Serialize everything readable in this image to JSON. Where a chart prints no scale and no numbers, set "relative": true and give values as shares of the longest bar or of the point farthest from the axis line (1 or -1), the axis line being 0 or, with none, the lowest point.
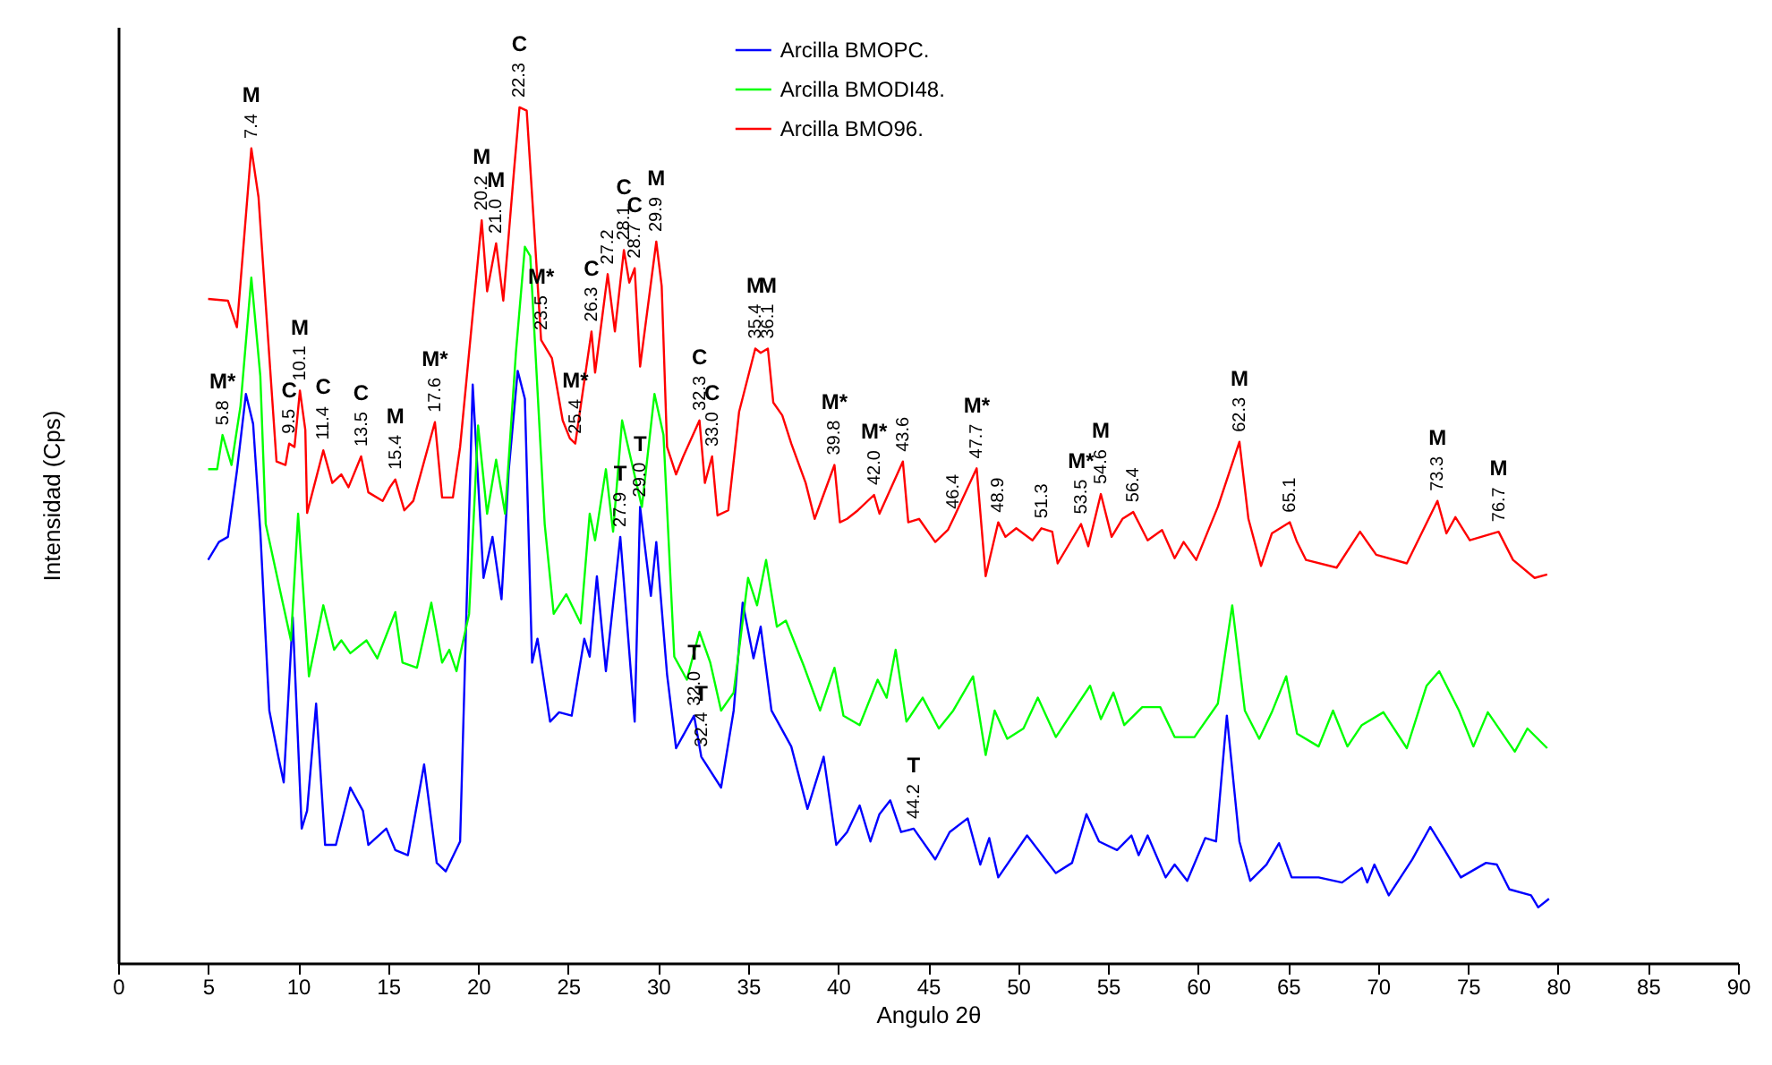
{
  "chart_data": {
    "type": "line",
    "relative": true,
    "xlabel": "Angulo 2θ",
    "ylabel": "Intensidad (Cps)",
    "xlim": [
      0,
      90
    ],
    "xticks": [
      0,
      5,
      10,
      15,
      20,
      25,
      30,
      35,
      40,
      45,
      50,
      55,
      60,
      65,
      70,
      75,
      80,
      85,
      90
    ],
    "legend": "top",
    "grid": false,
    "series": [
      {
        "name": "Arcilla BMOPC.",
        "color": "#0000ff",
        "x": [
          5.0,
          5.6,
          6.1,
          6.6,
          7.1,
          7.5,
          7.9,
          8.4,
          8.9,
          9.2,
          9.7,
          10.2,
          10.5,
          11.0,
          11.5,
          12.1,
          12.9,
          13.6,
          13.9,
          14.9,
          15.4,
          16.1,
          17.0,
          17.7,
          18.2,
          19.0,
          19.7,
          20.3,
          20.8,
          21.3,
          21.7,
          22.2,
          22.6,
          23.0,
          23.3,
          24.0,
          24.5,
          25.2,
          25.9,
          26.2,
          26.6,
          27.1,
          27.9,
          28.2,
          28.7,
          29.0,
          29.6,
          29.9,
          30.5,
          31.0,
          32.0,
          32.4,
          33.5,
          34.2,
          34.7,
          35.3,
          35.7,
          36.3,
          37.4,
          38.3,
          39.2,
          39.9,
          40.5,
          41.2,
          41.8,
          42.3,
          42.9,
          43.5,
          44.2,
          45.4,
          46.2,
          47.2,
          47.9,
          48.4,
          48.9,
          50.5,
          52.1,
          53.0,
          53.8,
          54.5,
          55.5,
          56.3,
          56.7,
          57.2,
          58.2,
          58.7,
          59.4,
          60.4,
          61.0,
          61.6,
          62.3,
          62.9,
          63.8,
          64.5,
          65.2,
          66.7,
          68.0,
          69.1,
          69.4,
          69.8,
          70.6,
          71.9,
          72.9,
          73.7,
          74.6,
          76.0,
          76.6,
          77.3,
          78.5,
          78.9,
          79.5
        ],
        "values": [
          0.471,
          0.492,
          0.498,
          0.575,
          0.665,
          0.63,
          0.504,
          0.295,
          0.241,
          0.211,
          0.404,
          0.157,
          0.178,
          0.303,
          0.138,
          0.138,
          0.205,
          0.178,
          0.138,
          0.157,
          0.132,
          0.126,
          0.232,
          0.117,
          0.107,
          0.142,
          0.676,
          0.45,
          0.498,
          0.425,
          0.575,
          0.692,
          0.659,
          0.351,
          0.379,
          0.282,
          0.293,
          0.289,
          0.379,
          0.358,
          0.452,
          0.341,
          0.498,
          0.418,
          0.282,
          0.533,
          0.429,
          0.492,
          0.337,
          0.251,
          0.289,
          0.241,
          0.205,
          0.295,
          0.421,
          0.356,
          0.393,
          0.295,
          0.253,
          0.18,
          0.241,
          0.138,
          0.153,
          0.184,
          0.142,
          0.174,
          0.19,
          0.153,
          0.157,
          0.121,
          0.153,
          0.169,
          0.115,
          0.146,
          0.1,
          0.149,
          0.105,
          0.117,
          0.174,
          0.142,
          0.132,
          0.149,
          0.126,
          0.149,
          0.1,
          0.115,
          0.096,
          0.146,
          0.142,
          0.289,
          0.142,
          0.096,
          0.115,
          0.14,
          0.1,
          0.1,
          0.094,
          0.111,
          0.094,
          0.115,
          0.079,
          0.121,
          0.159,
          0.132,
          0.1,
          0.117,
          0.115,
          0.086,
          0.079,
          0.065,
          0.075
        ]
      },
      {
        "name": "Arcilla BMODI48.",
        "color": "#00ff00",
        "x": [
          5.0,
          5.5,
          5.8,
          6.3,
          6.8,
          7.4,
          7.9,
          8.2,
          9.0,
          9.6,
          10.0,
          10.6,
          11.4,
          12.0,
          12.4,
          12.9,
          13.8,
          14.4,
          15.4,
          15.8,
          16.6,
          17.4,
          18.0,
          18.4,
          18.8,
          19.5,
          20.0,
          20.5,
          21.0,
          21.5,
          22.1,
          22.6,
          22.9,
          23.7,
          24.2,
          24.9,
          25.7,
          26.2,
          26.5,
          27.1,
          27.5,
          28.0,
          28.5,
          29.1,
          29.8,
          30.3,
          30.9,
          31.6,
          32.3,
          32.9,
          33.5,
          34.2,
          35.0,
          35.5,
          36.0,
          36.6,
          37.1,
          38.1,
          39.0,
          39.8,
          40.3,
          41.2,
          42.2,
          42.7,
          43.2,
          43.8,
          44.7,
          45.6,
          46.4,
          47.5,
          48.2,
          48.7,
          49.4,
          50.3,
          51.1,
          52.1,
          54.0,
          54.6,
          55.3,
          55.9,
          56.9,
          57.9,
          58.7,
          59.8,
          61.1,
          61.9,
          62.6,
          63.4,
          64.1,
          64.9,
          65.5,
          66.7,
          67.5,
          68.3,
          69.1,
          70.3,
          71.6,
          72.7,
          73.4,
          74.5,
          75.3,
          76.1,
          77.6,
          78.3,
          79.4
        ],
        "values": [
          0.577,
          0.577,
          0.617,
          0.582,
          0.651,
          0.801,
          0.686,
          0.513,
          0.435,
          0.377,
          0.525,
          0.335,
          0.418,
          0.366,
          0.377,
          0.362,
          0.377,
          0.356,
          0.41,
          0.351,
          0.345,
          0.421,
          0.351,
          0.366,
          0.341,
          0.408,
          0.628,
          0.525,
          0.588,
          0.525,
          0.713,
          0.837,
          0.826,
          0.513,
          0.408,
          0.431,
          0.397,
          0.525,
          0.494,
          0.577,
          0.504,
          0.634,
          0.588,
          0.533,
          0.665,
          0.617,
          0.358,
          0.331,
          0.387,
          0.351,
          0.295,
          0.316,
          0.45,
          0.418,
          0.471,
          0.393,
          0.4,
          0.347,
          0.295,
          0.345,
          0.289,
          0.278,
          0.331,
          0.31,
          0.366,
          0.282,
          0.31,
          0.274,
          0.295,
          0.335,
          0.243,
          0.295,
          0.262,
          0.274,
          0.31,
          0.264,
          0.324,
          0.285,
          0.316,
          0.278,
          0.299,
          0.299,
          0.264,
          0.264,
          0.303,
          0.418,
          0.295,
          0.262,
          0.293,
          0.335,
          0.268,
          0.253,
          0.295,
          0.253,
          0.278,
          0.293,
          0.251,
          0.324,
          0.341,
          0.295,
          0.253,
          0.293,
          0.247,
          0.274,
          0.251
        ]
      },
      {
        "name": "Arcilla BMO96.",
        "color": "#ff0000",
        "x": [
          5.0,
          6.1,
          6.6,
          7.4,
          7.8,
          8.2,
          8.8,
          9.3,
          9.5,
          9.8,
          10.1,
          10.4,
          10.5,
          11.4,
          11.9,
          12.4,
          12.8,
          13.5,
          13.9,
          14.7,
          15.1,
          15.4,
          15.9,
          16.4,
          17.6,
          18.0,
          18.6,
          19.0,
          20.2,
          20.5,
          21.0,
          21.4,
          22.0,
          22.3,
          22.7,
          23.1,
          23.5,
          24.1,
          24.7,
          25.1,
          25.4,
          26.3,
          26.5,
          27.2,
          27.6,
          28.1,
          28.4,
          28.7,
          29.0,
          29.9,
          30.2,
          30.5,
          31.0,
          31.4,
          32.3,
          32.6,
          33.0,
          33.3,
          33.9,
          34.5,
          35.4,
          35.7,
          36.1,
          36.4,
          36.9,
          37.4,
          38.2,
          38.7,
          39.8,
          40.1,
          40.5,
          41.1,
          42.0,
          42.3,
          43.6,
          43.9,
          44.5,
          45.4,
          46.1,
          46.4,
          47.7,
          48.2,
          48.9,
          49.3,
          49.9,
          50.8,
          51.3,
          51.9,
          52.2,
          53.5,
          53.9,
          54.6,
          55.2,
          55.8,
          56.4,
          57.2,
          58.0,
          58.7,
          59.2,
          59.9,
          61.1,
          62.3,
          62.8,
          63.5,
          64.1,
          65.1,
          65.5,
          66.0,
          67.7,
          69.0,
          69.9,
          71.6,
          73.3,
          73.8,
          74.3,
          75.1,
          76.7,
          77.5,
          78.7,
          79.4
        ],
        "values": [
          0.776,
          0.774,
          0.743,
          0.952,
          0.895,
          0.77,
          0.586,
          0.582,
          0.607,
          0.603,
          0.669,
          0.623,
          0.526,
          0.599,
          0.561,
          0.571,
          0.556,
          0.592,
          0.55,
          0.54,
          0.556,
          0.565,
          0.529,
          0.54,
          0.632,
          0.544,
          0.544,
          0.603,
          0.868,
          0.785,
          0.841,
          0.774,
          0.927,
          1.0,
          0.996,
          0.864,
          0.728,
          0.707,
          0.634,
          0.613,
          0.607,
          0.738,
          0.69,
          0.805,
          0.738,
          0.833,
          0.795,
          0.812,
          0.697,
          0.843,
          0.791,
          0.603,
          0.571,
          0.592,
          0.634,
          0.561,
          0.592,
          0.523,
          0.529,
          0.644,
          0.718,
          0.713,
          0.718,
          0.655,
          0.64,
          0.607,
          0.561,
          0.519,
          0.582,
          0.515,
          0.519,
          0.529,
          0.547,
          0.525,
          0.586,
          0.515,
          0.519,
          0.492,
          0.506,
          0.519,
          0.578,
          0.452,
          0.515,
          0.498,
          0.508,
          0.494,
          0.508,
          0.504,
          0.467,
          0.513,
          0.487,
          0.548,
          0.498,
          0.519,
          0.527,
          0.494,
          0.506,
          0.473,
          0.492,
          0.471,
          0.533,
          0.609,
          0.519,
          0.464,
          0.502,
          0.515,
          0.492,
          0.471,
          0.462,
          0.504,
          0.477,
          0.467,
          0.54,
          0.502,
          0.521,
          0.494,
          0.504,
          0.471,
          0.45,
          0.454
        ]
      }
    ],
    "annotations": [
      {
        "text": "M",
        "x": 7.4,
        "y": 0.952
      },
      {
        "text": "7.4",
        "x": 7.4,
        "y": 0.952
      },
      {
        "text": "M*",
        "x": 5.8,
        "y": 0.617
      },
      {
        "text": "5.8",
        "x": 5.8,
        "y": 0.617
      },
      {
        "text": "C",
        "x": 9.5,
        "y": 0.607
      },
      {
        "text": "9.5",
        "x": 9.5,
        "y": 0.607
      },
      {
        "text": "M",
        "x": 10.1,
        "y": 0.669
      },
      {
        "text": "10.1",
        "x": 10.1,
        "y": 0.669
      },
      {
        "text": "C",
        "x": 11.4,
        "y": 0.599
      },
      {
        "text": "11.4",
        "x": 11.4,
        "y": 0.599
      },
      {
        "text": "C",
        "x": 13.5,
        "y": 0.592
      },
      {
        "text": "13.5",
        "x": 13.5,
        "y": 0.592
      },
      {
        "text": "M",
        "x": 15.4,
        "y": 0.565
      },
      {
        "text": "15.4",
        "x": 15.4,
        "y": 0.565
      },
      {
        "text": "M*",
        "x": 17.6,
        "y": 0.632
      },
      {
        "text": "17.6",
        "x": 17.6,
        "y": 0.632
      },
      {
        "text": "M",
        "x": 20.2,
        "y": 0.868
      },
      {
        "text": "20.2",
        "x": 20.2,
        "y": 0.868
      },
      {
        "text": "M",
        "x": 21.0,
        "y": 0.841
      },
      {
        "text": "21.0",
        "x": 21.0,
        "y": 0.841
      },
      {
        "text": "C",
        "x": 22.3,
        "y": 1.0
      },
      {
        "text": "22.3",
        "x": 22.3,
        "y": 1.0
      },
      {
        "text": "M*",
        "x": 23.5,
        "y": 0.728
      },
      {
        "text": "23.5",
        "x": 23.5,
        "y": 0.728
      },
      {
        "text": "M*",
        "x": 25.4,
        "y": 0.607
      },
      {
        "text": "25.4",
        "x": 25.4,
        "y": 0.607
      },
      {
        "text": "C",
        "x": 26.3,
        "y": 0.738
      },
      {
        "text": "26.3",
        "x": 26.3,
        "y": 0.738
      },
      {
        "text": "27.2",
        "x": 27.2,
        "y": 0.805
      },
      {
        "text": "C",
        "x": 28.1,
        "y": 0.833
      },
      {
        "text": "28.1",
        "x": 28.1,
        "y": 0.833
      },
      {
        "text": "C",
        "x": 28.7,
        "y": 0.812
      },
      {
        "text": "28.7",
        "x": 28.7,
        "y": 0.812
      },
      {
        "text": "M",
        "x": 29.9,
        "y": 0.843
      },
      {
        "text": "29.9",
        "x": 29.9,
        "y": 0.843
      },
      {
        "text": "C",
        "x": 32.3,
        "y": 0.634
      },
      {
        "text": "32.3",
        "x": 32.3,
        "y": 0.634
      },
      {
        "text": "C",
        "x": 33.0,
        "y": 0.592
      },
      {
        "text": "33.0",
        "x": 33.0,
        "y": 0.592
      },
      {
        "text": "M",
        "x": 35.4,
        "y": 0.718
      },
      {
        "text": "35.4",
        "x": 35.4,
        "y": 0.718
      },
      {
        "text": "M",
        "x": 36.1,
        "y": 0.718
      },
      {
        "text": "36.1",
        "x": 36.1,
        "y": 0.718
      },
      {
        "text": "M*",
        "x": 39.8,
        "y": 0.582
      },
      {
        "text": "39.8",
        "x": 39.8,
        "y": 0.582
      },
      {
        "text": "M*",
        "x": 42.0,
        "y": 0.547
      },
      {
        "text": "42.0",
        "x": 42.0,
        "y": 0.547
      },
      {
        "text": "43.6",
        "x": 43.6,
        "y": 0.586
      },
      {
        "text": "46.4",
        "x": 46.4,
        "y": 0.519
      },
      {
        "text": "M*",
        "x": 47.7,
        "y": 0.578
      },
      {
        "text": "47.7",
        "x": 47.7,
        "y": 0.578
      },
      {
        "text": "48.9",
        "x": 48.9,
        "y": 0.515
      },
      {
        "text": "51.3",
        "x": 51.3,
        "y": 0.508
      },
      {
        "text": "M*",
        "x": 53.5,
        "y": 0.513
      },
      {
        "text": "53.5",
        "x": 53.5,
        "y": 0.513
      },
      {
        "text": "M",
        "x": 54.6,
        "y": 0.548
      },
      {
        "text": "54.6",
        "x": 54.6,
        "y": 0.548
      },
      {
        "text": "56.4",
        "x": 56.4,
        "y": 0.527
      },
      {
        "text": "M",
        "x": 62.3,
        "y": 0.609
      },
      {
        "text": "62.3",
        "x": 62.3,
        "y": 0.609
      },
      {
        "text": "65.1",
        "x": 65.1,
        "y": 0.515
      },
      {
        "text": "M",
        "x": 73.3,
        "y": 0.54
      },
      {
        "text": "73.3",
        "x": 73.3,
        "y": 0.54
      },
      {
        "text": "M",
        "x": 76.7,
        "y": 0.504
      },
      {
        "text": "76.7",
        "x": 76.7,
        "y": 0.504
      },
      {
        "text": "T",
        "x": 27.9,
        "y": 0.498
      },
      {
        "text": "27.9",
        "x": 27.9,
        "y": 0.498
      },
      {
        "text": "T",
        "x": 29.0,
        "y": 0.533
      },
      {
        "text": "29.0",
        "x": 29.0,
        "y": 0.533
      },
      {
        "text": "T",
        "x": 32.0,
        "y": 0.289
      },
      {
        "text": "32.0",
        "x": 32.0,
        "y": 0.289
      },
      {
        "text": "T",
        "x": 32.4,
        "y": 0.241
      },
      {
        "text": "32.4",
        "x": 32.4,
        "y": 0.241
      },
      {
        "text": "T",
        "x": 44.2,
        "y": 0.157
      },
      {
        "text": "44.2",
        "x": 44.2,
        "y": 0.157
      }
    ]
  }
}
